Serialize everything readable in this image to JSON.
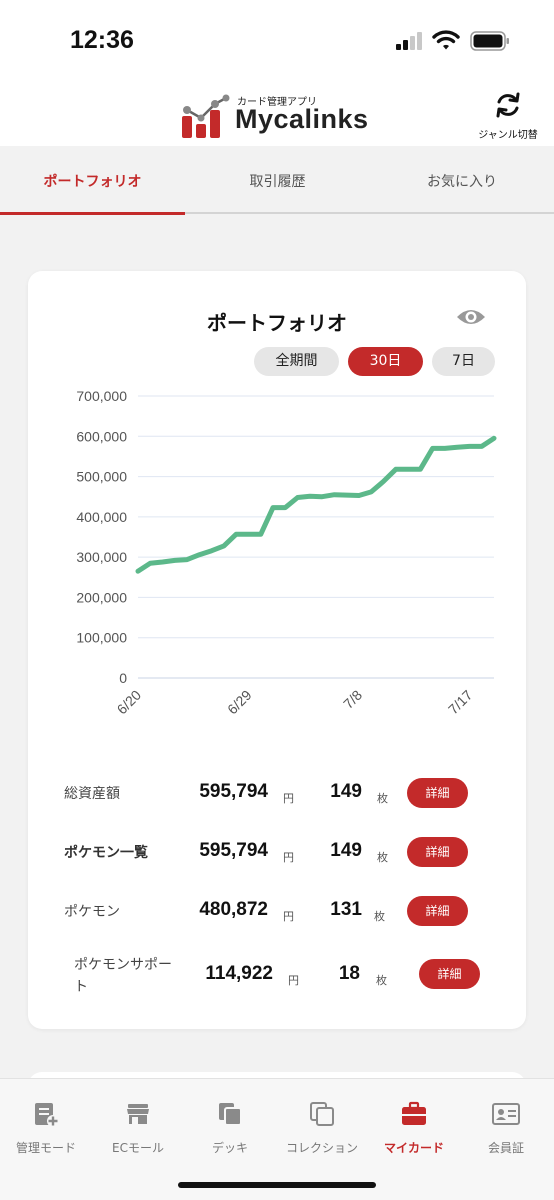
{
  "status_bar": {
    "time": "12:36"
  },
  "header": {
    "logo_sub": "カード管理アプリ",
    "logo_text": "Mycalinks",
    "genre_switch_label": "ジャンル切替"
  },
  "tabs": [
    {
      "label": "ポートフォリオ",
      "active": true
    },
    {
      "label": "取引履歴",
      "active": false
    },
    {
      "label": "お気に入り",
      "active": false
    }
  ],
  "portfolio": {
    "title": "ポートフォリオ",
    "ranges": [
      {
        "label": "全期間",
        "active": false
      },
      {
        "label": "30日",
        "active": true
      },
      {
        "label": "7日",
        "active": false
      }
    ],
    "rows": [
      {
        "label": "総資産額",
        "amount": "595,794",
        "yen": "円",
        "count": "149",
        "unit": "枚",
        "button": "詳細"
      },
      {
        "label": "ポケモン一覧",
        "amount": "595,794",
        "yen": "円",
        "count": "149",
        "unit": "枚",
        "button": "詳細"
      },
      {
        "label": "ポケモン",
        "amount": "480,872",
        "yen": "円",
        "count": "131",
        "unit": "枚",
        "button": "詳細"
      },
      {
        "label": "ポケモンサポート",
        "amount": "114,922",
        "yen": "円",
        "count": "18",
        "unit": "枚",
        "button": "詳細"
      }
    ]
  },
  "chart_data": {
    "type": "line",
    "title": "",
    "xlabel": "",
    "ylabel": "",
    "ylim": [
      0,
      700000
    ],
    "y_ticks": [
      "0",
      "100,000",
      "200,000",
      "300,000",
      "400,000",
      "500,000",
      "600,000",
      "700,000"
    ],
    "x_ticks": [
      "6/20",
      "6/29",
      "7/8",
      "7/17"
    ],
    "x": [
      "6/20",
      "6/21",
      "6/22",
      "6/23",
      "6/24",
      "6/25",
      "6/26",
      "6/27",
      "6/28",
      "6/29",
      "6/30",
      "7/1",
      "7/2",
      "7/3",
      "7/4",
      "7/5",
      "7/6",
      "7/7",
      "7/8",
      "7/9",
      "7/10",
      "7/11",
      "7/12",
      "7/13",
      "7/14",
      "7/15",
      "7/16",
      "7/17",
      "7/18",
      "7/19"
    ],
    "series": [
      {
        "values": [
          265000,
          285000,
          288000,
          292000,
          294000,
          306000,
          316000,
          328000,
          357000,
          357000,
          357000,
          423000,
          423000,
          448000,
          451000,
          450000,
          455000,
          454000,
          453000,
          462000,
          488000,
          518000,
          518000,
          518000,
          570000,
          570000,
          573000,
          575000,
          575000,
          595000
        ],
        "color": "#5cb88a"
      }
    ],
    "grid": true,
    "legend": "none"
  },
  "bottom_nav": [
    {
      "label": "管理モード",
      "icon": "admin-mode-icon",
      "active": false
    },
    {
      "label": "ECモール",
      "icon": "store-icon",
      "active": false
    },
    {
      "label": "デッキ",
      "icon": "deck-icon",
      "active": false
    },
    {
      "label": "コレクション",
      "icon": "collection-icon",
      "active": false
    },
    {
      "label": "マイカード",
      "icon": "briefcase-icon",
      "active": true
    },
    {
      "label": "会員証",
      "icon": "member-card-icon",
      "active": false
    }
  ],
  "colors": {
    "accent": "#c32a2a",
    "line": "#5cb88a"
  }
}
